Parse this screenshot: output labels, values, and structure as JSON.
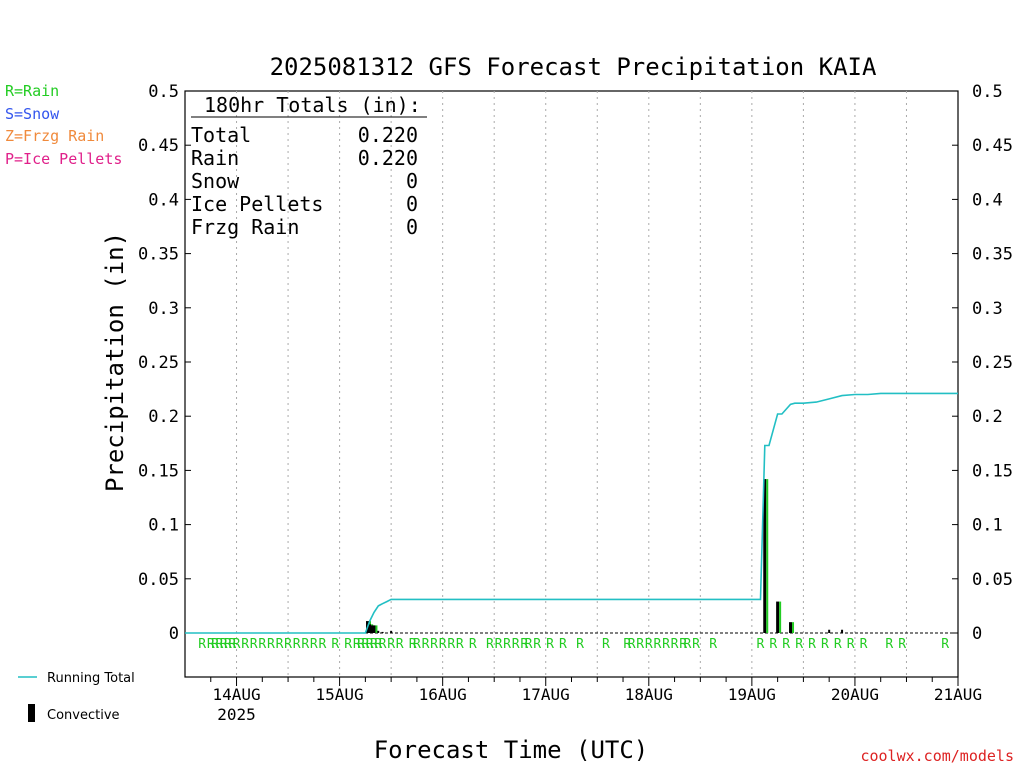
{
  "chart_data": {
    "type": "bar",
    "title": "2025081312 GFS Forecast Precipitation KAIA",
    "ylabel": "Precipitation (in)",
    "xlabel": "Forecast Time (UTC)",
    "ylim": [
      0,
      0.5
    ],
    "yticks": [
      "0",
      "0.05",
      "0.1",
      "0.15",
      "0.2",
      "0.25",
      "0.3",
      "0.35",
      "0.4",
      "0.45",
      "0.5"
    ],
    "xlim_hours": [
      0,
      180
    ],
    "xticks": [
      {
        "label": "14AUG",
        "hour": 12
      },
      {
        "label": "15AUG",
        "hour": 36
      },
      {
        "label": "16AUG",
        "hour": 60
      },
      {
        "label": "17AUG",
        "hour": 84
      },
      {
        "label": "18AUG",
        "hour": 108
      },
      {
        "label": "19AUG",
        "hour": 132
      },
      {
        "label": "20AUG",
        "hour": 156
      },
      {
        "label": "21AUG",
        "hour": 180
      }
    ],
    "year_label": "2025",
    "grid": "vertical dotted at day and half-day",
    "legend": {
      "types": [
        {
          "text": "R=Rain",
          "color": "#22cc22"
        },
        {
          "text": "S=Snow",
          "color": "#3355ee"
        },
        {
          "text": "Z=Frzg Rain",
          "color": "#f08a3c"
        },
        {
          "text": "P=Ice Pellets",
          "color": "#e0208a"
        }
      ],
      "running_total": "Running Total",
      "convective": "Convective"
    },
    "totals": {
      "header": "180hr Totals (in):",
      "rows": [
        {
          "label": "Total",
          "value": "0.220"
        },
        {
          "label": "Rain",
          "value": "0.220"
        },
        {
          "label": "Snow",
          "value": "0"
        },
        {
          "label": "Ice Pellets",
          "value": "0"
        },
        {
          "label": "Frzg Rain",
          "value": "0"
        }
      ]
    },
    "bars": [
      {
        "hour": 42.5,
        "value": 0.011,
        "convective": true
      },
      {
        "hour": 43.0,
        "value": 0.008,
        "convective": true
      },
      {
        "hour": 43.5,
        "value": 0.007,
        "convective": true
      },
      {
        "hour": 44.0,
        "value": 0.007,
        "convective": true
      },
      {
        "hour": 45.0,
        "value": 0.002,
        "convective": false
      },
      {
        "hour": 46.0,
        "value": 0.001,
        "convective": false
      },
      {
        "hour": 48.0,
        "value": 0.002,
        "convective": false
      },
      {
        "hour": 135.0,
        "value": 0.142,
        "convective": true
      },
      {
        "hour": 138.0,
        "value": 0.029,
        "convective": true
      },
      {
        "hour": 141.0,
        "value": 0.01,
        "convective": true
      },
      {
        "hour": 150.0,
        "value": 0.003,
        "convective": false
      },
      {
        "hour": 153.0,
        "value": 0.003,
        "convective": false
      }
    ],
    "running_total": {
      "hours": [
        0,
        42,
        43,
        44,
        45,
        46,
        47,
        48,
        49,
        134,
        135,
        136,
        138,
        139,
        141,
        142,
        144,
        147,
        150,
        153,
        156,
        159,
        162,
        180
      ],
      "values": [
        0,
        0,
        0.011,
        0.019,
        0.025,
        0.027,
        0.029,
        0.031,
        0.031,
        0.031,
        0.173,
        0.173,
        0.202,
        0.202,
        0.211,
        0.212,
        0.212,
        0.213,
        0.216,
        0.219,
        0.22,
        0.22,
        0.221,
        0.221
      ]
    },
    "precip_type_markers": {
      "text": "R",
      "hours": [
        4,
        6,
        7,
        8,
        9,
        10,
        11,
        12,
        14,
        16,
        18,
        20,
        22,
        24,
        26,
        28,
        30,
        32,
        35,
        38,
        40,
        41,
        42,
        43,
        44,
        45,
        46,
        48,
        50,
        53,
        54,
        56,
        58,
        60,
        62,
        64,
        67,
        71,
        73,
        75,
        77,
        79,
        80,
        82,
        85,
        88,
        92,
        98,
        103,
        104,
        106,
        108,
        110,
        112,
        114,
        116,
        117,
        119,
        123,
        134,
        137,
        140,
        143,
        146,
        149,
        152,
        155,
        158,
        164,
        167,
        177
      ]
    },
    "watermark": "coolwx.com/models"
  }
}
